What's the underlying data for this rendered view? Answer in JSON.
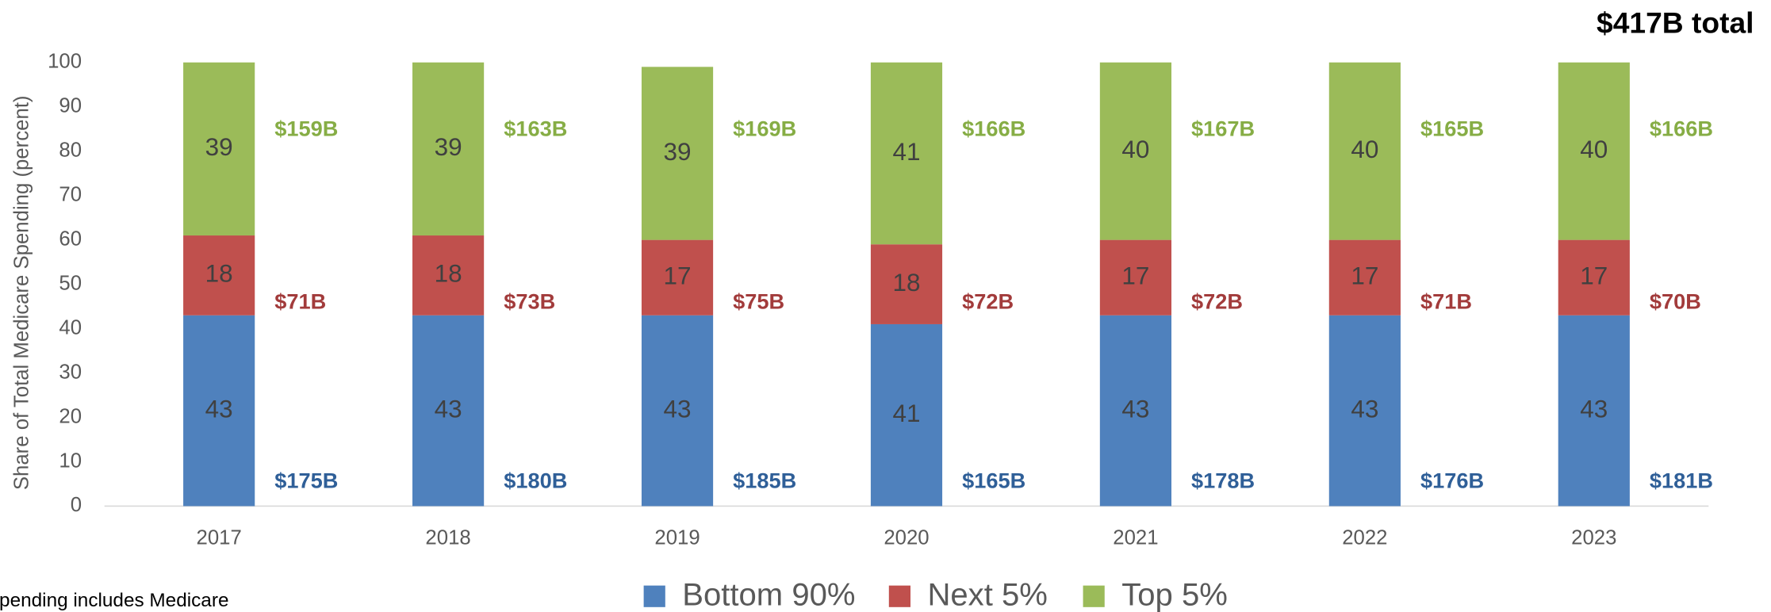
{
  "chart_data": {
    "type": "stacked_bar",
    "title": "$417B total",
    "note": "Spending includes Medicare",
    "ylabel": "Share of Total Medicare Spending (percent)",
    "categories": [
      "2017",
      "2018",
      "2019",
      "2020",
      "2021",
      "2022",
      "2023"
    ],
    "series": [
      {
        "name": "Bottom 90%",
        "color": "#4f81bd",
        "label_color": "#2f5f98",
        "values": [
          43,
          43,
          43,
          41,
          43,
          43,
          43
        ],
        "amounts": [
          "$175B",
          "$180B",
          "$185B",
          "$165B",
          "$178B",
          "$176B",
          "$181B"
        ]
      },
      {
        "name": "Next 5%",
        "color": "#c0504d",
        "label_color": "#a23b3b",
        "values": [
          18,
          18,
          17,
          18,
          17,
          17,
          17
        ],
        "amounts": [
          "$71B",
          "$73B",
          "$75B",
          "$72B",
          "$72B",
          "$71B",
          "$70B"
        ]
      },
      {
        "name": "Top 5%",
        "color": "#9bbb59",
        "label_color": "#86ad45",
        "values": [
          39,
          39,
          39,
          41,
          40,
          40,
          40
        ],
        "amounts": [
          "$159B",
          "$163B",
          "$169B",
          "$166B",
          "$167B",
          "$165B",
          "$166B"
        ]
      }
    ],
    "ylim": [
      0,
      100
    ],
    "yticks": [
      0,
      10,
      20,
      30,
      40,
      50,
      60,
      70,
      80,
      90,
      100
    ],
    "grid": false,
    "legend": "bottom"
  }
}
